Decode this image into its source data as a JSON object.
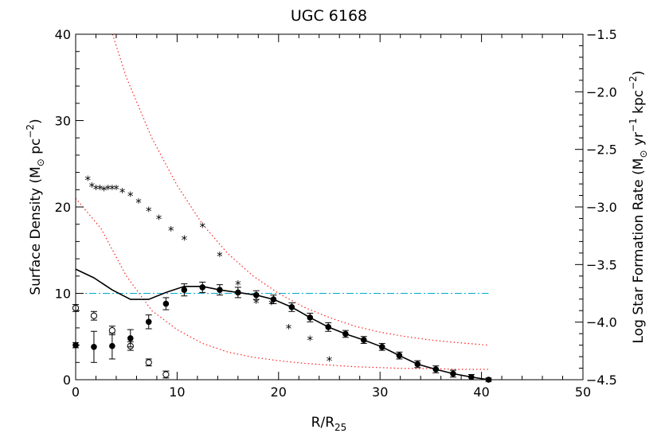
{
  "chart_data": {
    "type": "scatter",
    "title": "UGC 6168",
    "xlabel": {
      "main": "R/R",
      "sub": "25"
    },
    "ylabel": {
      "pre": "Surface Density (M",
      "sym": "⊙",
      "mid": " pc",
      "sup": "−2",
      "post": ")"
    },
    "y2label": {
      "pre": "Log Star Formation Rate (M",
      "sym": "⊙",
      "a": " yr",
      "sup1": "−1",
      "b": " kpc",
      "sup2": "−2",
      "post": ")"
    },
    "xlim": [
      0,
      50
    ],
    "ylim": [
      0,
      40
    ],
    "y2lim": [
      -4.5,
      -1.5
    ],
    "xticks": [
      0,
      10,
      20,
      30,
      40,
      50
    ],
    "yticks": [
      0,
      10,
      20,
      30,
      40
    ],
    "y2ticks": [
      "-1.5",
      "-2.0",
      "-2.5",
      "-3.0",
      "-3.5",
      "-4.0",
      "-4.5"
    ],
    "grid": false,
    "series": [
      {
        "kind": "filled-circles-errorbars",
        "points": [
          [
            0.0,
            4.0,
            0.3
          ],
          [
            1.8,
            3.8,
            1.8
          ],
          [
            3.6,
            3.9,
            1.5
          ],
          [
            5.4,
            4.8,
            1.0
          ],
          [
            7.2,
            6.7,
            0.8
          ],
          [
            8.9,
            8.8,
            0.7
          ],
          [
            10.7,
            10.4,
            0.7
          ],
          [
            12.5,
            10.7,
            0.6
          ],
          [
            14.2,
            10.4,
            0.6
          ],
          [
            16.0,
            10.1,
            0.6
          ],
          [
            17.8,
            9.8,
            0.5
          ],
          [
            19.5,
            9.3,
            0.5
          ],
          [
            21.3,
            8.4,
            0.5
          ],
          [
            23.1,
            7.2,
            0.5
          ],
          [
            24.9,
            6.1,
            0.5
          ],
          [
            26.6,
            5.3,
            0.4
          ],
          [
            28.4,
            4.6,
            0.4
          ],
          [
            30.2,
            3.8,
            0.4
          ],
          [
            31.9,
            2.8,
            0.4
          ],
          [
            33.7,
            1.8,
            0.4
          ],
          [
            35.5,
            1.2,
            0.4
          ],
          [
            37.2,
            0.7,
            0.4
          ],
          [
            39.0,
            0.3,
            0.3
          ],
          [
            40.7,
            0.0,
            0.2
          ]
        ]
      },
      {
        "kind": "open-circles-errorbars",
        "points": [
          [
            0.0,
            8.3,
            0.4
          ],
          [
            1.8,
            7.4,
            0.5
          ],
          [
            3.6,
            5.7,
            0.5
          ],
          [
            5.4,
            3.9,
            0.5
          ],
          [
            7.2,
            2.0,
            0.4
          ],
          [
            8.9,
            0.6,
            0.4
          ],
          [
            10.7,
            -0.3,
            0.4
          ],
          [
            12.5,
            -0.6,
            0.3
          ],
          [
            14.2,
            -0.9,
            0.2
          ]
        ]
      },
      {
        "kind": "asterisks",
        "y_axis": "right",
        "points": [
          [
            1.2,
            -2.76
          ],
          [
            1.6,
            -2.82
          ],
          [
            2.0,
            -2.84
          ],
          [
            2.4,
            -2.84
          ],
          [
            2.8,
            -2.85
          ],
          [
            3.2,
            -2.84
          ],
          [
            3.6,
            -2.84
          ],
          [
            4.0,
            -2.84
          ],
          [
            4.6,
            -2.87
          ],
          [
            5.4,
            -2.9
          ],
          [
            6.2,
            -2.96
          ],
          [
            7.2,
            -3.03
          ],
          [
            8.2,
            -3.1
          ],
          [
            9.4,
            -3.2
          ],
          [
            10.7,
            -3.28
          ],
          [
            12.5,
            -3.17
          ],
          [
            14.2,
            -3.42
          ],
          [
            16.0,
            -3.67
          ],
          [
            17.8,
            -3.83
          ],
          [
            19.3,
            -3.84
          ],
          [
            21.0,
            -4.05
          ],
          [
            23.1,
            -4.15
          ],
          [
            25.0,
            -4.33
          ]
        ]
      },
      {
        "kind": "black-solid-line",
        "points": [
          [
            0.0,
            12.8
          ],
          [
            1.8,
            11.8
          ],
          [
            3.6,
            10.4
          ],
          [
            5.4,
            9.3
          ],
          [
            7.2,
            9.3
          ],
          [
            8.9,
            10.1
          ],
          [
            10.7,
            10.8
          ],
          [
            12.5,
            10.8
          ],
          [
            14.2,
            10.4
          ],
          [
            16.0,
            10.1
          ],
          [
            17.8,
            9.8
          ],
          [
            19.5,
            9.3
          ],
          [
            21.3,
            8.4
          ],
          [
            23.1,
            7.2
          ],
          [
            24.9,
            6.1
          ],
          [
            26.6,
            5.3
          ],
          [
            28.4,
            4.6
          ],
          [
            30.2,
            3.8
          ],
          [
            31.9,
            2.8
          ],
          [
            33.7,
            1.8
          ],
          [
            35.5,
            1.2
          ],
          [
            37.2,
            0.7
          ],
          [
            39.0,
            0.3
          ],
          [
            40.7,
            0.0
          ]
        ]
      },
      {
        "kind": "red-dotted-upper",
        "points": [
          [
            3.5,
            40.5
          ],
          [
            5.0,
            35.0
          ],
          [
            7.5,
            28.0
          ],
          [
            10.0,
            22.5
          ],
          [
            12.5,
            18.0
          ],
          [
            15.0,
            14.6
          ],
          [
            17.5,
            12.0
          ],
          [
            20.0,
            10.0
          ],
          [
            22.5,
            8.4
          ],
          [
            25.0,
            7.2
          ],
          [
            27.5,
            6.2
          ],
          [
            30.0,
            5.5
          ],
          [
            32.5,
            5.0
          ],
          [
            35.0,
            4.6
          ],
          [
            37.5,
            4.3
          ],
          [
            40.7,
            4.0
          ]
        ]
      },
      {
        "kind": "red-dotted-lower",
        "points": [
          [
            0.0,
            21.0
          ],
          [
            2.5,
            17.5
          ],
          [
            5.0,
            12.0
          ],
          [
            7.5,
            8.0
          ],
          [
            10.0,
            5.8
          ],
          [
            12.5,
            4.2
          ],
          [
            15.0,
            3.2
          ],
          [
            17.5,
            2.6
          ],
          [
            20.0,
            2.2
          ],
          [
            22.5,
            1.9
          ],
          [
            25.0,
            1.7
          ],
          [
            27.5,
            1.5
          ],
          [
            30.0,
            1.4
          ],
          [
            32.5,
            1.3
          ],
          [
            35.0,
            1.3
          ],
          [
            37.5,
            1.2
          ],
          [
            40.7,
            1.2
          ]
        ]
      },
      {
        "kind": "cyan-dash-dot",
        "points": [
          [
            0.0,
            10.0
          ],
          [
            40.7,
            10.0
          ]
        ]
      }
    ]
  },
  "colors": {
    "axis": "#000000",
    "red_dotted": "#ff2020",
    "cyan": "#00aacc"
  }
}
